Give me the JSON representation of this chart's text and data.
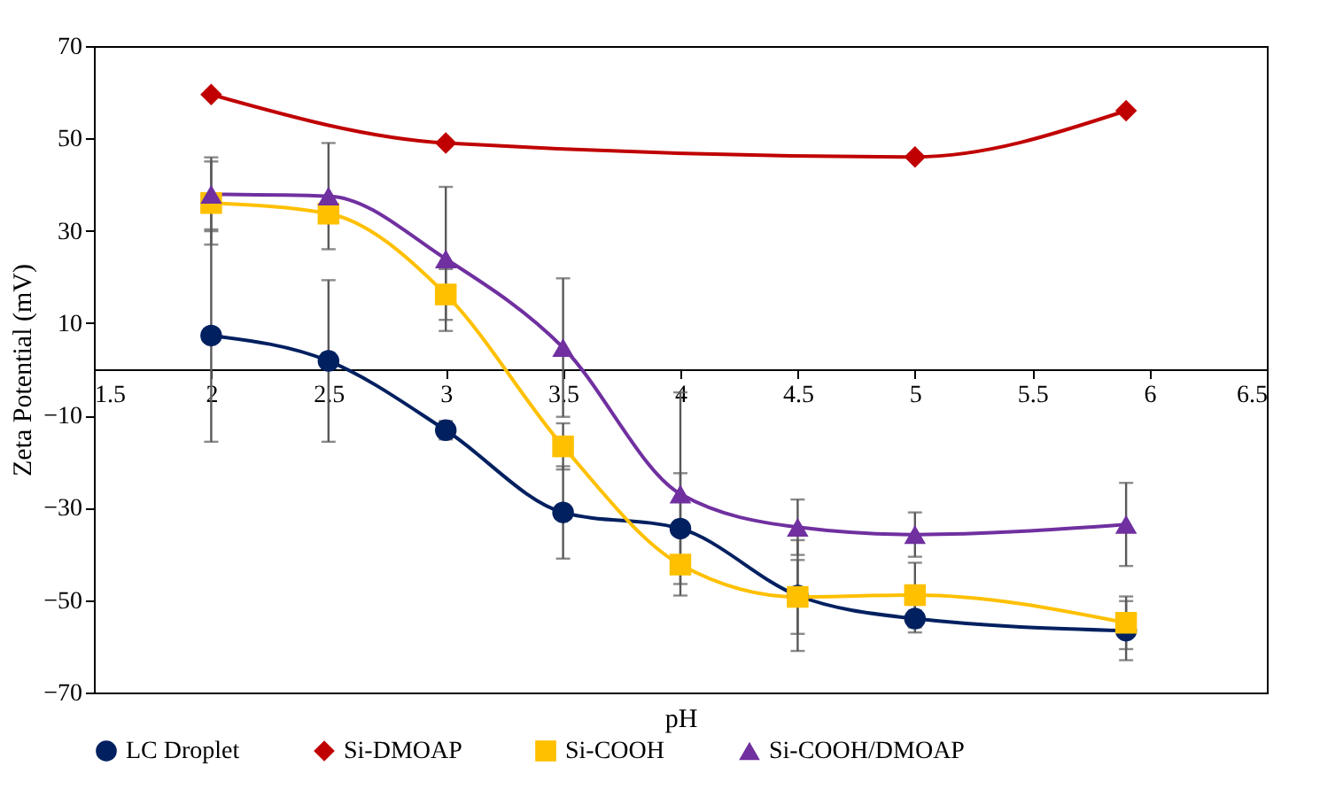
{
  "chart_data": {
    "type": "line",
    "xlabel": "pH",
    "ylabel": "Zeta Potential (mV)",
    "xlim": [
      1.5,
      6.5
    ],
    "xticks": [
      1.5,
      2,
      2.5,
      3,
      3.5,
      4,
      4.5,
      5,
      5.5,
      6,
      6.5
    ],
    "ylim": [
      -70,
      70
    ],
    "yticks": [
      -70,
      -50,
      -30,
      -10,
      10,
      30,
      50,
      70
    ],
    "grid": false,
    "legend": "bottom",
    "line_style": "solid",
    "series": [
      {
        "name": "LC Droplet",
        "color": "#002060",
        "marker": "circle",
        "x": [
          2,
          2.5,
          3,
          3.5,
          4,
          4.5,
          5,
          5.9
        ],
        "values": [
          7.3,
          1.8,
          -13.2,
          -31,
          -34.5,
          -49,
          -54,
          -56.6
        ],
        "errors": [
          23,
          17.5,
          2,
          10,
          12,
          12,
          3,
          6.4
        ]
      },
      {
        "name": "Si-DMOAP",
        "color": "#c00000",
        "marker": "diamond",
        "x": [
          2,
          3,
          5,
          5.9
        ],
        "values": [
          59.5,
          49,
          46,
          56
        ]
      },
      {
        "name": "Si-COOH",
        "color": "#ffc000",
        "marker": "square",
        "x": [
          2,
          2.5,
          3,
          3.5,
          4,
          4.5,
          5,
          5.9
        ],
        "values": [
          36,
          33.7,
          16.2,
          -16.7,
          -42.3,
          -49.3,
          -48.9,
          -54.9
        ],
        "errors": [
          9,
          null,
          5.5,
          5,
          null,
          8,
          7,
          5.7
        ]
      },
      {
        "name": "Si-COOH/DMOAP",
        "color": "#7030a0",
        "marker": "triangle",
        "x": [
          2,
          2.5,
          3,
          3.5,
          4,
          4.5,
          5,
          5.9
        ],
        "values": [
          37.9,
          37.5,
          23.9,
          4.7,
          -27,
          -34.2,
          -35.8,
          -33.6
        ],
        "errors": [
          8,
          11.5,
          15.6,
          15,
          22,
          6,
          4.8,
          9
        ]
      }
    ]
  }
}
